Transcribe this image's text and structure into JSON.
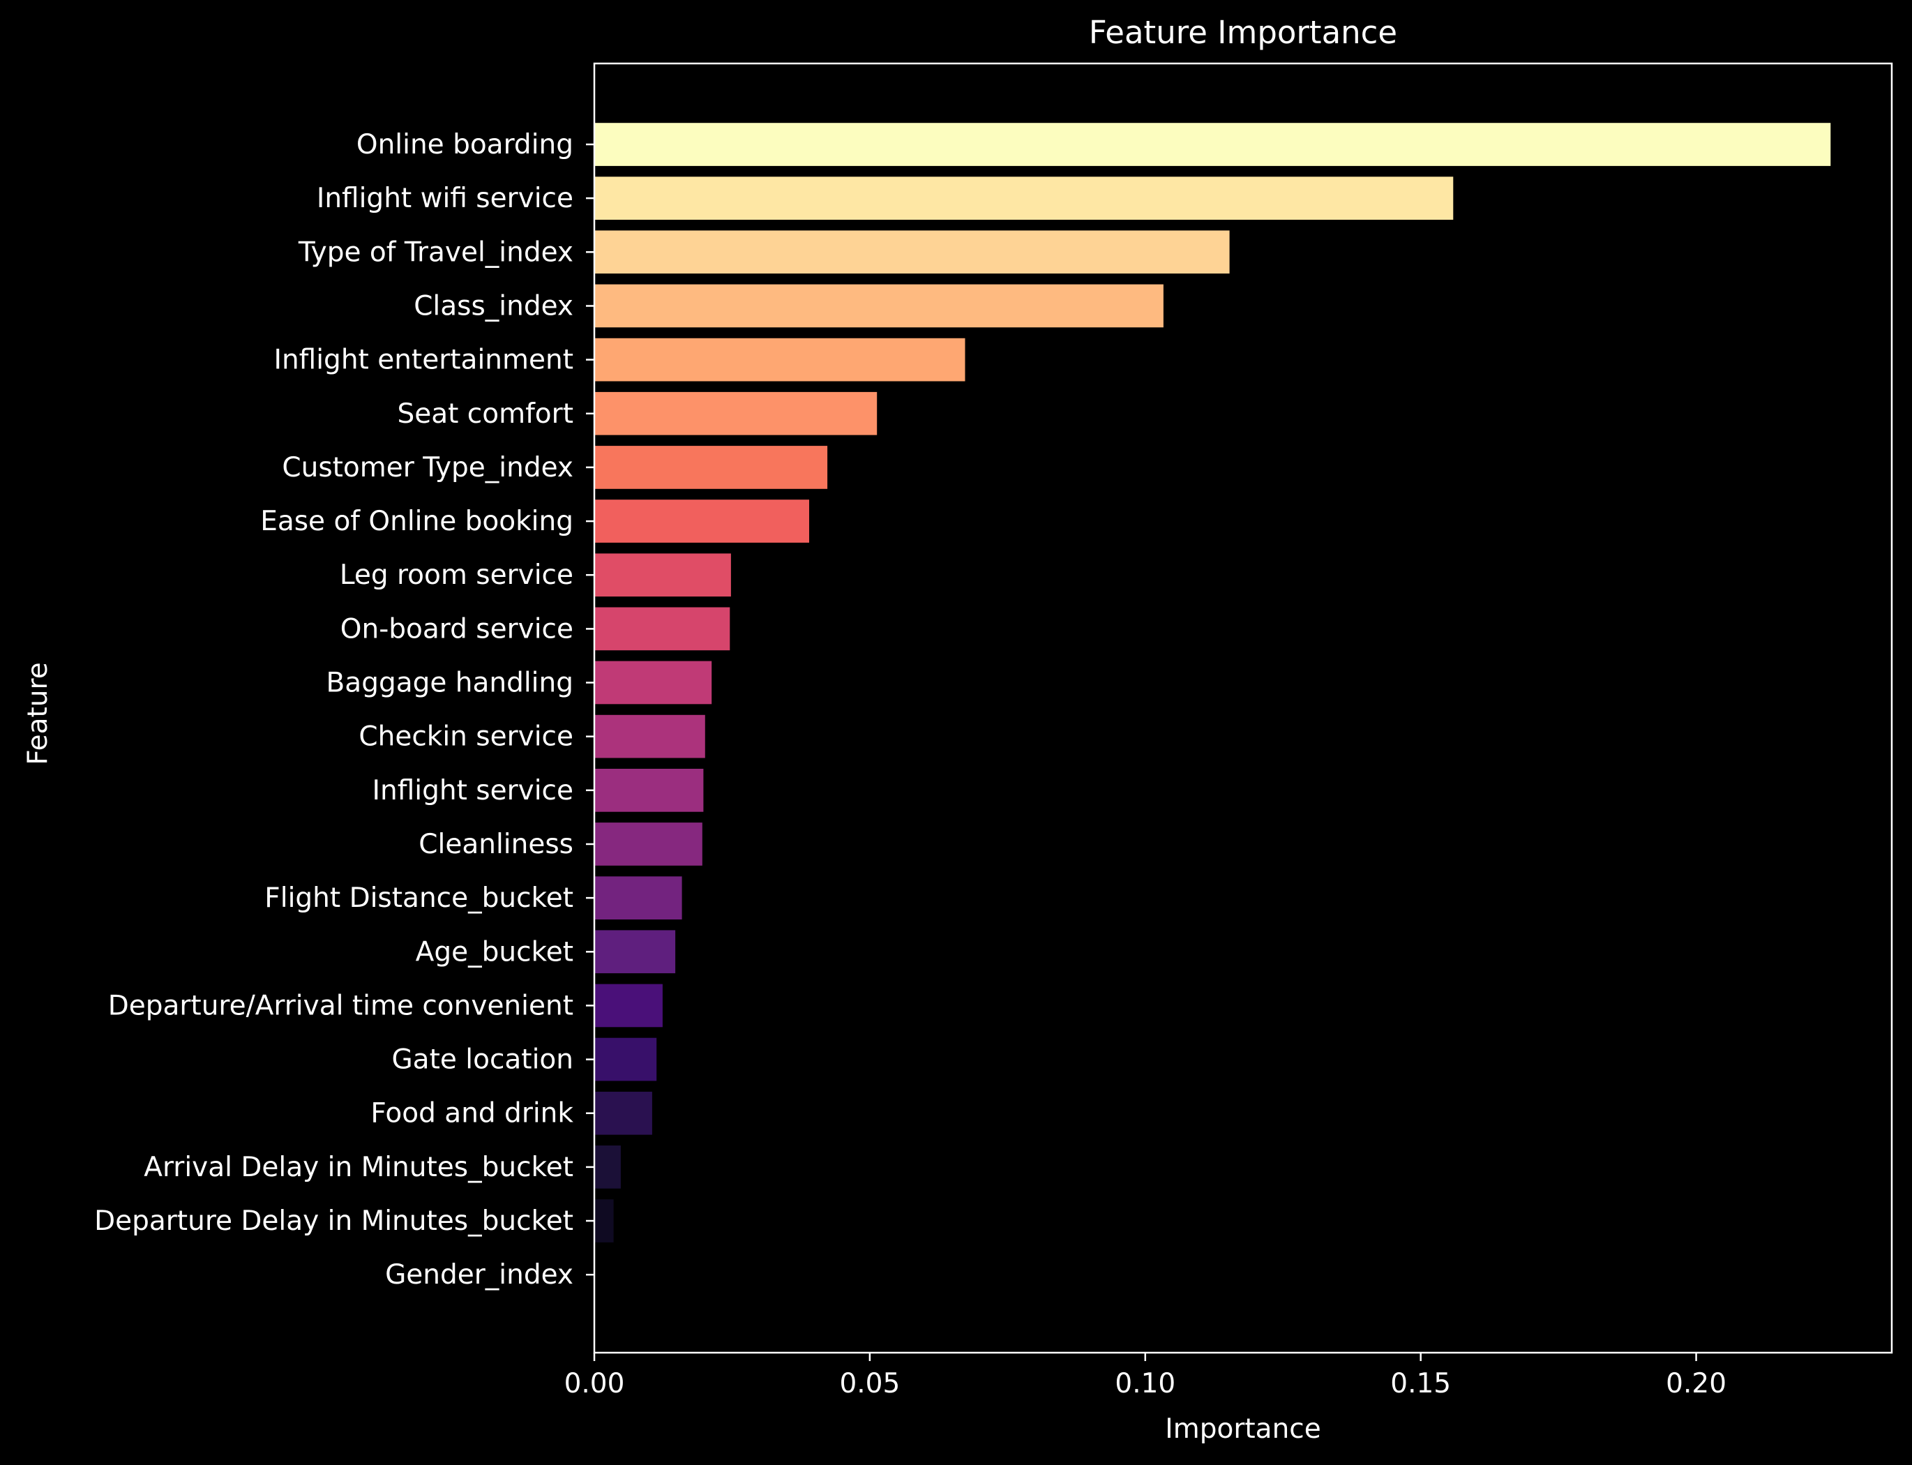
{
  "chart_data": {
    "type": "bar",
    "orientation": "horizontal",
    "title": "Feature Importance",
    "xlabel": "Importance",
    "ylabel": "Feature",
    "xlim": [
      0,
      0.2355
    ],
    "xticks": [
      0.0,
      0.05,
      0.1,
      0.15,
      0.2
    ],
    "xtick_labels": [
      "0.00",
      "0.05",
      "0.10",
      "0.15",
      "0.20"
    ],
    "grid": false,
    "legend": "none",
    "colormap": "magma",
    "categories": [
      "Online boarding",
      "Inflight wifi service",
      "Type of Travel_index",
      "Class_index",
      "Inflight entertainment",
      "Seat comfort",
      "Customer Type_index",
      "Ease of Online booking",
      "Leg room service",
      "On-board service",
      "Baggage handling",
      "Checkin service",
      "Inflight service",
      "Cleanliness",
      "Flight Distance_bucket",
      "Age_bucket",
      "Departure/Arrival time convenient",
      "Gate location",
      "Food and drink",
      "Arrival Delay in Minutes_bucket",
      "Departure Delay in Minutes_bucket",
      "Gender_index"
    ],
    "values": [
      0.2244,
      0.1559,
      0.1153,
      0.1033,
      0.0673,
      0.0513,
      0.0423,
      0.039,
      0.0248,
      0.0246,
      0.0213,
      0.0201,
      0.0198,
      0.0196,
      0.0159,
      0.0147,
      0.0124,
      0.0113,
      0.0105,
      0.0048,
      0.0035,
      0.0001
    ],
    "colors": [
      "#fcfdbf",
      "#fee7a4",
      "#fed395",
      "#feba80",
      "#fea772",
      "#fd9269",
      "#f8765c",
      "#f1605d",
      "#e04d66",
      "#d6456c",
      "#c03a76",
      "#ac337c",
      "#9b2e7f",
      "#86287f",
      "#73237f",
      "#5f1f7e",
      "#4a1079",
      "#38106a",
      "#2a1150",
      "#1b1037",
      "#0f0a22",
      "#000004"
    ]
  }
}
